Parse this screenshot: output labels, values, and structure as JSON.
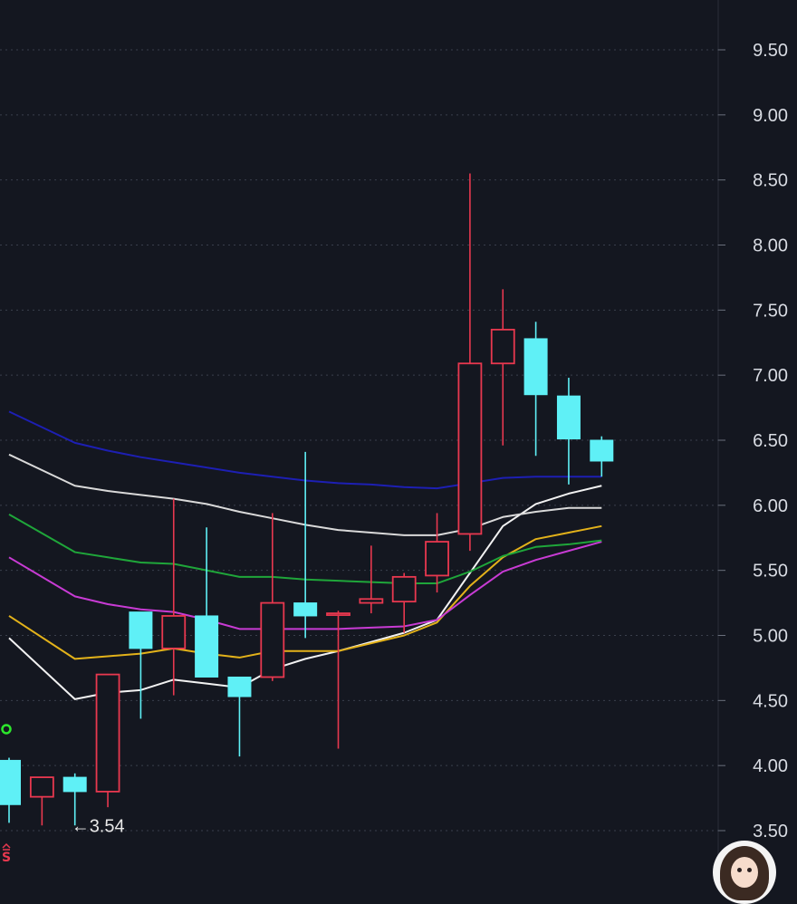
{
  "chart_data": {
    "type": "candlestick",
    "y_axis": {
      "position": "right",
      "ticks": [
        "9.50",
        "9.00",
        "8.50",
        "8.00",
        "7.50",
        "7.00",
        "6.50",
        "6.00",
        "5.50",
        "5.00",
        "4.50",
        "4.00",
        "3.50"
      ],
      "ylim": [
        3.35,
        10.0
      ]
    },
    "grid": true,
    "colors": {
      "background": "#141720",
      "up": "#e8384f",
      "down": "#5ff0f6",
      "grid": "#3a3f4c",
      "ma_white": "#f2f2f2",
      "ma_yellow": "#e3b21a",
      "ma_magenta": "#c83bd4",
      "ma_green": "#1fa63a",
      "ma_gray": "#d9d9d9",
      "ma_blue": "#1d1fb3"
    },
    "candles": [
      {
        "open": 4.04,
        "close": 3.7,
        "high": 4.06,
        "low": 3.56
      },
      {
        "open": 3.76,
        "close": 3.91,
        "high": 3.91,
        "low": 3.54
      },
      {
        "open": 3.91,
        "close": 3.8,
        "high": 3.94,
        "low": 3.54
      },
      {
        "open": 3.8,
        "close": 4.7,
        "high": 4.7,
        "low": 3.68
      },
      {
        "open": 5.18,
        "close": 4.9,
        "high": 5.18,
        "low": 4.36
      },
      {
        "open": 4.9,
        "close": 5.15,
        "high": 6.05,
        "low": 4.54
      },
      {
        "open": 5.15,
        "close": 4.68,
        "high": 5.83,
        "low": 4.68
      },
      {
        "open": 4.68,
        "close": 4.53,
        "high": 4.68,
        "low": 4.07
      },
      {
        "open": 4.68,
        "close": 5.25,
        "high": 5.94,
        "low": 4.65
      },
      {
        "open": 5.25,
        "close": 5.15,
        "high": 6.41,
        "low": 4.98
      },
      {
        "open": 5.16,
        "close": 5.17,
        "high": 5.19,
        "low": 4.13
      },
      {
        "open": 5.25,
        "close": 5.28,
        "high": 5.69,
        "low": 5.17
      },
      {
        "open": 5.26,
        "close": 5.45,
        "high": 5.48,
        "low": 5.02
      },
      {
        "open": 5.46,
        "close": 5.72,
        "high": 5.94,
        "low": 5.33
      },
      {
        "open": 5.78,
        "close": 7.09,
        "high": 8.55,
        "low": 5.65
      },
      {
        "open": 7.09,
        "close": 7.35,
        "high": 7.66,
        "low": 6.46
      },
      {
        "open": 7.28,
        "close": 6.85,
        "high": 7.41,
        "low": 6.38
      },
      {
        "open": 6.84,
        "close": 6.51,
        "high": 6.98,
        "low": 6.16
      },
      {
        "open": 6.5,
        "close": 6.34,
        "high": 6.53,
        "low": 6.22
      }
    ],
    "moving_averages": [
      {
        "color_key": "ma_white",
        "values": [
          4.98,
          null,
          4.51,
          4.56,
          4.58,
          4.66,
          4.63,
          4.6,
          4.74,
          4.82,
          4.88,
          4.95,
          5.02,
          5.12,
          5.48,
          5.84,
          6.01,
          6.09,
          6.15
        ]
      },
      {
        "color_key": "ma_yellow",
        "values": [
          5.15,
          null,
          4.82,
          4.84,
          4.86,
          4.9,
          4.86,
          4.83,
          4.88,
          4.88,
          4.88,
          4.94,
          5.0,
          5.1,
          5.38,
          5.6,
          5.74,
          5.79,
          5.84
        ]
      },
      {
        "color_key": "ma_magenta",
        "values": [
          5.6,
          null,
          5.3,
          5.24,
          5.2,
          5.18,
          5.12,
          5.05,
          5.05,
          5.05,
          5.05,
          5.06,
          5.07,
          5.12,
          5.31,
          5.49,
          5.58,
          5.65,
          5.72
        ]
      },
      {
        "color_key": "ma_green",
        "values": [
          5.93,
          null,
          5.64,
          5.6,
          5.56,
          5.55,
          5.5,
          5.45,
          5.45,
          5.43,
          5.42,
          5.41,
          5.4,
          5.4,
          5.49,
          5.61,
          5.68,
          5.7,
          5.73
        ]
      },
      {
        "color_key": "ma_gray",
        "values": [
          6.39,
          null,
          6.15,
          6.11,
          6.08,
          6.05,
          6.01,
          5.95,
          5.9,
          5.85,
          5.81,
          5.79,
          5.77,
          5.77,
          5.82,
          5.91,
          5.95,
          5.98,
          5.98
        ]
      },
      {
        "color_key": "ma_blue",
        "values": [
          6.72,
          null,
          6.48,
          6.42,
          6.37,
          6.33,
          6.29,
          6.25,
          6.22,
          6.19,
          6.17,
          6.16,
          6.14,
          6.13,
          6.17,
          6.21,
          6.22,
          6.22,
          6.22
        ]
      }
    ],
    "low_annotation": {
      "candle_index": 2,
      "text": "3.54",
      "arrow": "←"
    },
    "signals": [
      {
        "candle_index": 0,
        "type": "circle",
        "color": "#2ce62c",
        "price": 4.28
      },
      {
        "candle_index": 0,
        "type": "S",
        "text": "S",
        "color": "#e8384f"
      }
    ]
  }
}
